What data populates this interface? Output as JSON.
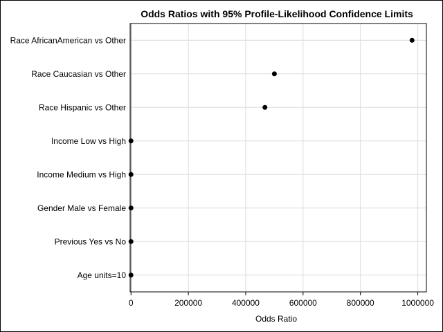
{
  "chart_data": {
    "type": "scatter",
    "title": "Odds Ratios with 95% Profile-Likelihood Confidence Limits",
    "xlabel": "Odds Ratio",
    "ylabel": "",
    "xlim": [
      -3000,
      1030000
    ],
    "x_ticks": [
      0,
      200000,
      400000,
      600000,
      800000,
      1000000
    ],
    "x_tick_labels": [
      "0",
      "200000",
      "400000",
      "600000",
      "800000",
      "1000000"
    ],
    "reference_line": 1,
    "grid": true,
    "legend": "none",
    "marker_color": "#000000",
    "categories": [
      "Race AfricanAmerican vs Other",
      "Race Caucasian vs Other",
      "Race Hispanic vs Other",
      "Income Low vs High",
      "Income Medium vs High",
      "Gender Male vs Female",
      "Previous Yes vs No",
      "Age units=10"
    ],
    "values": [
      980000,
      500000,
      467000,
      2,
      1.5,
      1.2,
      1.8,
      1.1
    ]
  }
}
